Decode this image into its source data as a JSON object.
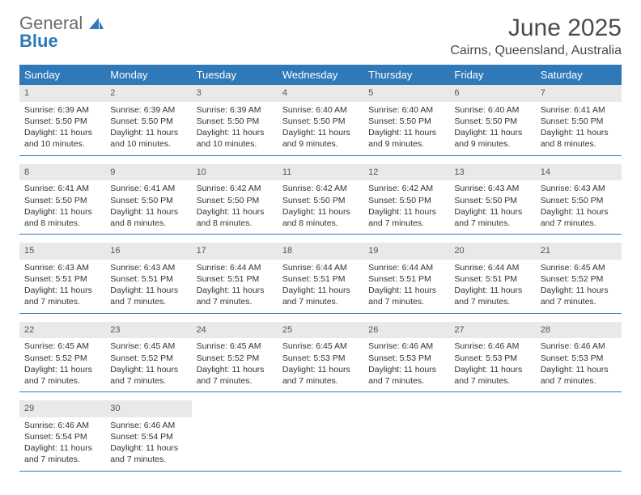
{
  "logo": {
    "text1": "General",
    "text2": "Blue"
  },
  "title": "June 2025",
  "location": "Cairns, Queensland, Australia",
  "colors": {
    "header_bg": "#2f79b9",
    "header_text": "#ffffff",
    "daynum_bg": "#e9e9e9",
    "border": "#2f79b9",
    "text": "#333333"
  },
  "typography": {
    "title_fontsize": 30,
    "location_fontsize": 16,
    "dayhead_fontsize": 13,
    "cell_fontsize": 10.5
  },
  "day_names": [
    "Sunday",
    "Monday",
    "Tuesday",
    "Wednesday",
    "Thursday",
    "Friday",
    "Saturday"
  ],
  "weeks": [
    [
      {
        "day": "1",
        "sunrise": "Sunrise: 6:39 AM",
        "sunset": "Sunset: 5:50 PM",
        "daylight": "Daylight: 11 hours and 10 minutes."
      },
      {
        "day": "2",
        "sunrise": "Sunrise: 6:39 AM",
        "sunset": "Sunset: 5:50 PM",
        "daylight": "Daylight: 11 hours and 10 minutes."
      },
      {
        "day": "3",
        "sunrise": "Sunrise: 6:39 AM",
        "sunset": "Sunset: 5:50 PM",
        "daylight": "Daylight: 11 hours and 10 minutes."
      },
      {
        "day": "4",
        "sunrise": "Sunrise: 6:40 AM",
        "sunset": "Sunset: 5:50 PM",
        "daylight": "Daylight: 11 hours and 9 minutes."
      },
      {
        "day": "5",
        "sunrise": "Sunrise: 6:40 AM",
        "sunset": "Sunset: 5:50 PM",
        "daylight": "Daylight: 11 hours and 9 minutes."
      },
      {
        "day": "6",
        "sunrise": "Sunrise: 6:40 AM",
        "sunset": "Sunset: 5:50 PM",
        "daylight": "Daylight: 11 hours and 9 minutes."
      },
      {
        "day": "7",
        "sunrise": "Sunrise: 6:41 AM",
        "sunset": "Sunset: 5:50 PM",
        "daylight": "Daylight: 11 hours and 8 minutes."
      }
    ],
    [
      {
        "day": "8",
        "sunrise": "Sunrise: 6:41 AM",
        "sunset": "Sunset: 5:50 PM",
        "daylight": "Daylight: 11 hours and 8 minutes."
      },
      {
        "day": "9",
        "sunrise": "Sunrise: 6:41 AM",
        "sunset": "Sunset: 5:50 PM",
        "daylight": "Daylight: 11 hours and 8 minutes."
      },
      {
        "day": "10",
        "sunrise": "Sunrise: 6:42 AM",
        "sunset": "Sunset: 5:50 PM",
        "daylight": "Daylight: 11 hours and 8 minutes."
      },
      {
        "day": "11",
        "sunrise": "Sunrise: 6:42 AM",
        "sunset": "Sunset: 5:50 PM",
        "daylight": "Daylight: 11 hours and 8 minutes."
      },
      {
        "day": "12",
        "sunrise": "Sunrise: 6:42 AM",
        "sunset": "Sunset: 5:50 PM",
        "daylight": "Daylight: 11 hours and 7 minutes."
      },
      {
        "day": "13",
        "sunrise": "Sunrise: 6:43 AM",
        "sunset": "Sunset: 5:50 PM",
        "daylight": "Daylight: 11 hours and 7 minutes."
      },
      {
        "day": "14",
        "sunrise": "Sunrise: 6:43 AM",
        "sunset": "Sunset: 5:50 PM",
        "daylight": "Daylight: 11 hours and 7 minutes."
      }
    ],
    [
      {
        "day": "15",
        "sunrise": "Sunrise: 6:43 AM",
        "sunset": "Sunset: 5:51 PM",
        "daylight": "Daylight: 11 hours and 7 minutes."
      },
      {
        "day": "16",
        "sunrise": "Sunrise: 6:43 AM",
        "sunset": "Sunset: 5:51 PM",
        "daylight": "Daylight: 11 hours and 7 minutes."
      },
      {
        "day": "17",
        "sunrise": "Sunrise: 6:44 AM",
        "sunset": "Sunset: 5:51 PM",
        "daylight": "Daylight: 11 hours and 7 minutes."
      },
      {
        "day": "18",
        "sunrise": "Sunrise: 6:44 AM",
        "sunset": "Sunset: 5:51 PM",
        "daylight": "Daylight: 11 hours and 7 minutes."
      },
      {
        "day": "19",
        "sunrise": "Sunrise: 6:44 AM",
        "sunset": "Sunset: 5:51 PM",
        "daylight": "Daylight: 11 hours and 7 minutes."
      },
      {
        "day": "20",
        "sunrise": "Sunrise: 6:44 AM",
        "sunset": "Sunset: 5:51 PM",
        "daylight": "Daylight: 11 hours and 7 minutes."
      },
      {
        "day": "21",
        "sunrise": "Sunrise: 6:45 AM",
        "sunset": "Sunset: 5:52 PM",
        "daylight": "Daylight: 11 hours and 7 minutes."
      }
    ],
    [
      {
        "day": "22",
        "sunrise": "Sunrise: 6:45 AM",
        "sunset": "Sunset: 5:52 PM",
        "daylight": "Daylight: 11 hours and 7 minutes."
      },
      {
        "day": "23",
        "sunrise": "Sunrise: 6:45 AM",
        "sunset": "Sunset: 5:52 PM",
        "daylight": "Daylight: 11 hours and 7 minutes."
      },
      {
        "day": "24",
        "sunrise": "Sunrise: 6:45 AM",
        "sunset": "Sunset: 5:52 PM",
        "daylight": "Daylight: 11 hours and 7 minutes."
      },
      {
        "day": "25",
        "sunrise": "Sunrise: 6:45 AM",
        "sunset": "Sunset: 5:53 PM",
        "daylight": "Daylight: 11 hours and 7 minutes."
      },
      {
        "day": "26",
        "sunrise": "Sunrise: 6:46 AM",
        "sunset": "Sunset: 5:53 PM",
        "daylight": "Daylight: 11 hours and 7 minutes."
      },
      {
        "day": "27",
        "sunrise": "Sunrise: 6:46 AM",
        "sunset": "Sunset: 5:53 PM",
        "daylight": "Daylight: 11 hours and 7 minutes."
      },
      {
        "day": "28",
        "sunrise": "Sunrise: 6:46 AM",
        "sunset": "Sunset: 5:53 PM",
        "daylight": "Daylight: 11 hours and 7 minutes."
      }
    ],
    [
      {
        "day": "29",
        "sunrise": "Sunrise: 6:46 AM",
        "sunset": "Sunset: 5:54 PM",
        "daylight": "Daylight: 11 hours and 7 minutes."
      },
      {
        "day": "30",
        "sunrise": "Sunrise: 6:46 AM",
        "sunset": "Sunset: 5:54 PM",
        "daylight": "Daylight: 11 hours and 7 minutes."
      },
      {
        "empty": true
      },
      {
        "empty": true
      },
      {
        "empty": true
      },
      {
        "empty": true
      },
      {
        "empty": true
      }
    ]
  ]
}
